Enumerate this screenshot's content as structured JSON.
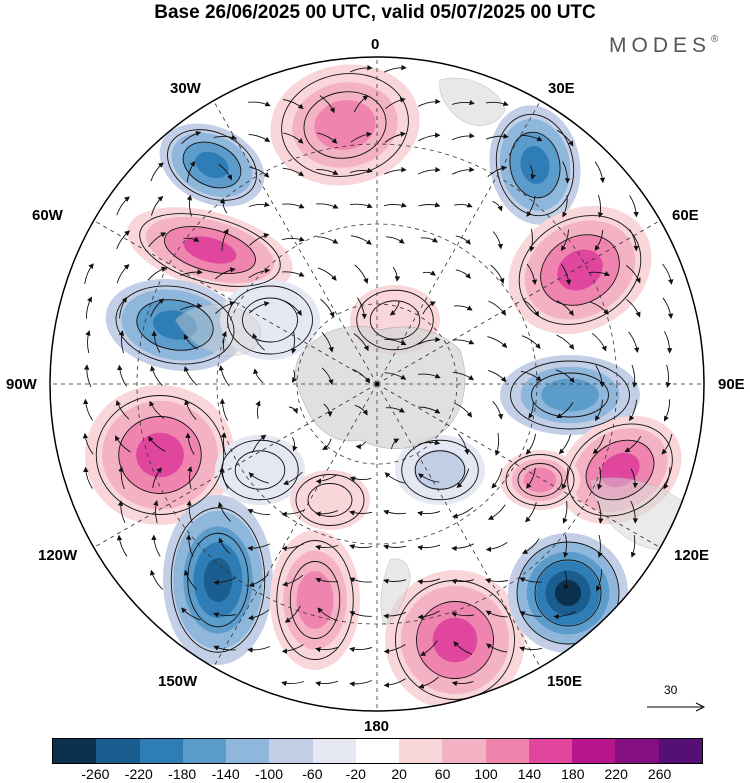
{
  "title": "Base 26/06/2025 00 UTC, valid 05/07/2025 00 UTC",
  "brand": "MODES",
  "brand_mark": "®",
  "longitude_labels": {
    "n0": "0",
    "e30": "30E",
    "e60": "60E",
    "e90": "90E",
    "e120": "120E",
    "e150": "150E",
    "s180": "180",
    "w150": "150W",
    "w120": "120W",
    "w90": "90W",
    "w60": "60W",
    "w30": "30W"
  },
  "vector_scale": {
    "label": "30"
  },
  "colorbar": {
    "colors": [
      "#0b3150",
      "#1a5e8f",
      "#2f7db7",
      "#5b9ccb",
      "#8fb6db",
      "#c3cfe6",
      "#e5e8f3",
      "#ffffff",
      "#f9d6da",
      "#f4b3c4",
      "#ef85ae",
      "#e0469d",
      "#b8168d",
      "#840f82",
      "#560f75"
    ],
    "tick_labels": [
      "-260",
      "-220",
      "-180",
      "-140",
      "-100",
      "-60",
      "-20",
      "20",
      "60",
      "100",
      "140",
      "180",
      "220",
      "260"
    ]
  },
  "colors": {
    "land": "#d6d6d6",
    "negative": "#2f7db7",
    "positive": "#e0469d"
  }
}
